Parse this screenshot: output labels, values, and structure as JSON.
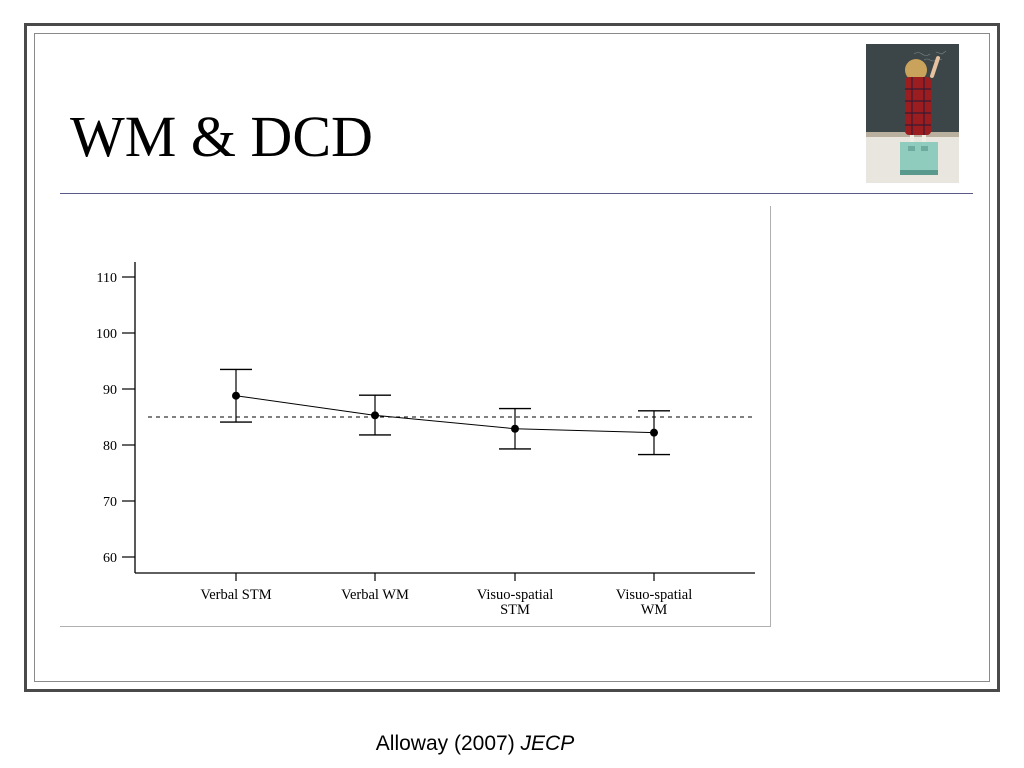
{
  "slide": {
    "title": "WM & DCD",
    "citation_author": "Alloway (2007)",
    "citation_journal": "JECP"
  },
  "photo": {
    "description_icon": "girl-at-chalkboard-photo"
  },
  "colors": {
    "frame": "#4a4a4a",
    "rule": "#5a5a8a",
    "chalkboard": "#3c4547",
    "dress": "#9b1d20",
    "stool": "#7fc7b8"
  },
  "chart_data": {
    "type": "line",
    "categories": [
      [
        "Verbal STM"
      ],
      [
        "Verbal WM"
      ],
      [
        "Visuo-spatial",
        "STM"
      ],
      [
        "Visuo-spatial",
        "WM"
      ]
    ],
    "series": [
      {
        "values": [
          88.8,
          85.3,
          82.9,
          82.2
        ],
        "error_low": [
          84.1,
          81.8,
          79.3,
          78.3
        ],
        "error_high": [
          93.5,
          88.9,
          86.5,
          86.1
        ]
      }
    ],
    "reference_line": 85,
    "ylim": [
      60,
      110
    ],
    "yticks": [
      60,
      70,
      80,
      90,
      100,
      110
    ],
    "xlabel": "",
    "ylabel": "",
    "title": "",
    "grid": false
  }
}
